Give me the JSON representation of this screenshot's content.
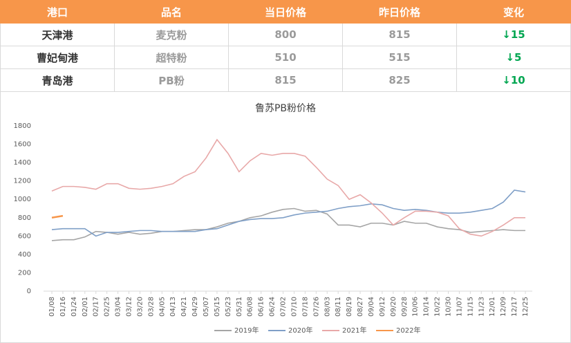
{
  "table": {
    "header": [
      "港口",
      "品名",
      "当日价格",
      "昨日价格",
      "变化"
    ],
    "rows": [
      [
        "天津港",
        "麦克粉",
        800,
        815,
        "↓15"
      ],
      [
        "曹妃甸港",
        "超特粉",
        510,
        515,
        "↓5"
      ],
      [
        "青岛港",
        "PB粉",
        815,
        825,
        "↓10"
      ]
    ]
  },
  "chart_data": {
    "type": "line",
    "title": "鲁苏PB粉价格",
    "categories": [
      "01/08",
      "01/16",
      "01/24",
      "02/01",
      "02/17",
      "02/25",
      "03/04",
      "03/12",
      "03/20",
      "03/28",
      "04/05",
      "04/13",
      "04/21",
      "04/29",
      "05/07",
      "05/15",
      "05/23",
      "05/31",
      "06/08",
      "06/16",
      "06/24",
      "07/02",
      "07/10",
      "07/18",
      "07/26",
      "08/03",
      "08/11",
      "08/19",
      "08/27",
      "09/04",
      "09/12",
      "09/20",
      "09/28",
      "10/06",
      "10/14",
      "10/22",
      "10/30",
      "11/07",
      "11/15",
      "11/23",
      "12/01",
      "12/09",
      "12/17",
      "12/25"
    ],
    "series": [
      {
        "name": "2019年",
        "color": "#a5a5a5",
        "values": [
          550,
          560,
          560,
          590,
          650,
          640,
          620,
          640,
          620,
          630,
          650,
          650,
          660,
          670,
          670,
          700,
          740,
          760,
          800,
          820,
          860,
          890,
          900,
          870,
          880,
          840,
          720,
          720,
          700,
          740,
          740,
          720,
          760,
          740,
          740,
          700,
          680,
          670,
          640,
          650,
          660,
          670,
          660,
          660
        ]
      },
      {
        "name": "2020年",
        "color": "#7f9fc7",
        "values": [
          670,
          680,
          680,
          680,
          600,
          640,
          640,
          650,
          660,
          660,
          650,
          650,
          650,
          650,
          670,
          680,
          720,
          760,
          780,
          790,
          790,
          800,
          830,
          850,
          860,
          870,
          900,
          920,
          930,
          950,
          940,
          900,
          880,
          890,
          880,
          860,
          850,
          850,
          860,
          880,
          900,
          970,
          1100,
          1080
        ]
      },
      {
        "name": "2021年",
        "color": "#e8a8a8",
        "values": [
          1090,
          1140,
          1140,
          1130,
          1110,
          1170,
          1170,
          1120,
          1110,
          1120,
          1140,
          1170,
          1250,
          1300,
          1450,
          1650,
          1500,
          1300,
          1420,
          1500,
          1480,
          1500,
          1500,
          1470,
          1350,
          1220,
          1150,
          1000,
          1050,
          960,
          850,
          720,
          800,
          870,
          870,
          860,
          820,
          680,
          620,
          600,
          650,
          720,
          800,
          800
        ]
      },
      {
        "name": "2022年",
        "color": "#f7964a",
        "values": [
          800,
          820,
          null,
          null,
          null,
          null,
          null,
          null,
          null,
          null,
          null,
          null,
          null,
          null,
          null,
          null,
          null,
          null,
          null,
          null,
          null,
          null,
          null,
          null,
          null,
          null,
          null,
          null,
          null,
          null,
          null,
          null,
          null,
          null,
          null,
          null,
          null,
          null,
          null,
          null,
          null,
          null,
          null,
          null
        ]
      }
    ],
    "ylim": [
      0,
      1800
    ],
    "yticks": [
      0,
      200,
      400,
      600,
      800,
      1000,
      1200,
      1400,
      1600,
      1800
    ],
    "grid": false,
    "legend": "bottom"
  }
}
